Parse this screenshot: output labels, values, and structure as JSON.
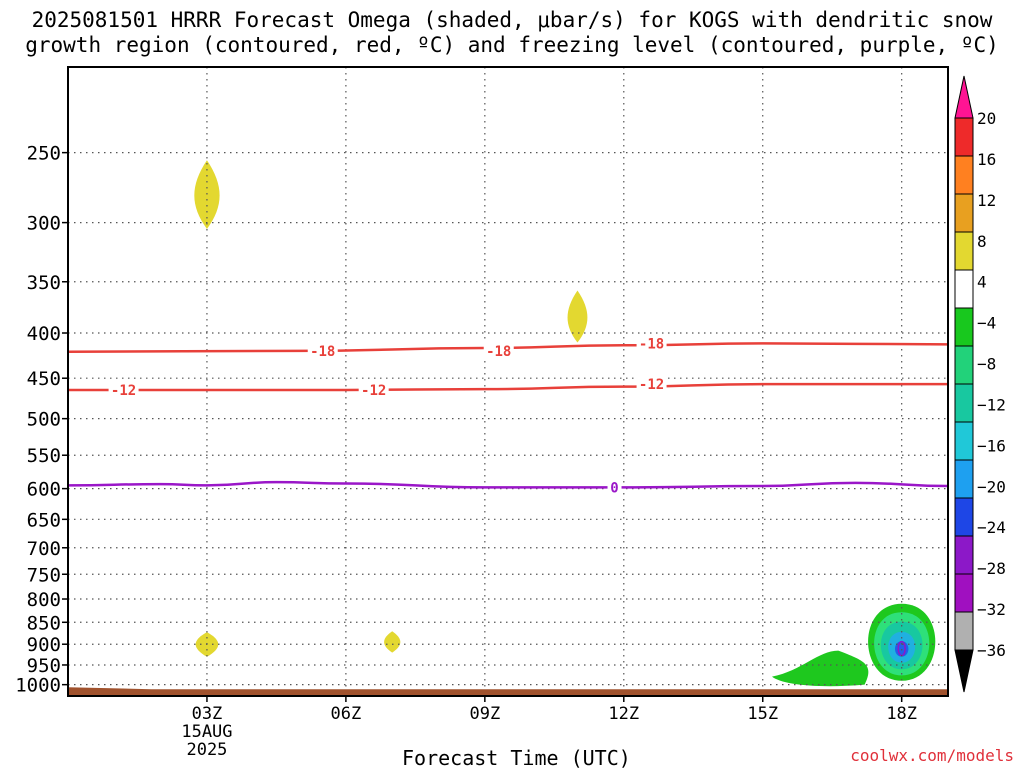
{
  "title": "2025081501 HRRR Forecast Omega (shaded, μbar/s) for KOGS with dendritic snow\ngrowth region (contoured, red, ºC) and freezing level (contoured, purple, ºC)",
  "credit": "coolwx.com/models",
  "colors": {
    "dgz_contour": "#e8403a",
    "freezing_contour": "#9a16c8",
    "terrain": "#a0522d",
    "grid": "#555555",
    "omega_yellow": "#e3d830",
    "omega_green_light": "#2ee07a",
    "omega_green": "#1ec81e",
    "omega_teal": "#18c8a0",
    "omega_cyan": "#20b0e0",
    "omega_blue": "#2060e8"
  },
  "chart_data": {
    "type": "heatmap",
    "xlabel": "Forecast Time (UTC)",
    "x_ticks": [
      "03Z",
      "06Z",
      "09Z",
      "12Z",
      "15Z",
      "18Z"
    ],
    "x_tick_hours": [
      3,
      6,
      9,
      12,
      15,
      18
    ],
    "x_date_label": [
      "15AUG",
      "2025"
    ],
    "xlim_hours": [
      0,
      19
    ],
    "y_ticks": [
      250,
      300,
      350,
      400,
      450,
      500,
      550,
      600,
      650,
      700,
      750,
      800,
      850,
      900,
      950,
      1000
    ],
    "ylim_hPa": [
      200,
      1030
    ],
    "y_scale": "log-pressure",
    "grid": true,
    "colorbar": {
      "labels": [
        "20",
        "16",
        "12",
        "8",
        "4",
        "−4",
        "−8",
        "−12",
        "−16",
        "−20",
        "−24",
        "−28",
        "−32",
        "−36"
      ],
      "colors": [
        "#ff1493",
        "#ee2a2a",
        "#ff8020",
        "#e8a020",
        "#e3d830",
        "#ffffff",
        "#18c81e",
        "#22d27a",
        "#18c8a0",
        "#20c8d8",
        "#1ea0f0",
        "#1e46e6",
        "#8c18c8",
        "#a010c0",
        "#b0b0b0",
        "#000000"
      ]
    },
    "contours": [
      {
        "label": "-18",
        "color": "red",
        "points": [
          [
            0,
            420
          ],
          [
            5,
            419
          ],
          [
            9,
            416
          ],
          [
            12,
            413
          ],
          [
            15,
            411
          ],
          [
            19,
            412
          ]
        ]
      },
      {
        "label": "-12",
        "color": "red",
        "points": [
          [
            0,
            464
          ],
          [
            6,
            464
          ],
          [
            9,
            463
          ],
          [
            12,
            460
          ],
          [
            15,
            457
          ],
          [
            19,
            457
          ]
        ]
      },
      {
        "label": "0",
        "color": "purple",
        "points": [
          [
            0,
            595
          ],
          [
            2,
            593
          ],
          [
            3,
            595
          ],
          [
            4.5,
            590
          ],
          [
            6,
            592
          ],
          [
            9,
            598
          ],
          [
            12,
            598
          ],
          [
            15,
            596
          ],
          [
            17,
            591
          ],
          [
            19,
            596
          ]
        ]
      }
    ],
    "contour_label_positions": [
      [
        5.5,
        419
      ],
      [
        1.2,
        464
      ],
      [
        6.6,
        464
      ],
      [
        9.3,
        419
      ],
      [
        12.6,
        411
      ],
      [
        12.6,
        457
      ],
      [
        11.8,
        598
      ]
    ],
    "omega_regions": [
      {
        "value_range": [
          4,
          8
        ],
        "center_hour": 3.0,
        "center_hPa": 280,
        "half_width_h": 0.28,
        "top_hPa": 255,
        "bottom_hPa": 305
      },
      {
        "value_range": [
          4,
          8
        ],
        "center_hour": 11.0,
        "center_hPa": 385,
        "half_width_h": 0.22,
        "top_hPa": 358,
        "bottom_hPa": 410
      },
      {
        "value_range": [
          4,
          8
        ],
        "center_hour": 3.0,
        "center_hPa": 900,
        "half_width_h": 0.25,
        "top_hPa": 872,
        "bottom_hPa": 930
      },
      {
        "value_range": [
          4,
          8
        ],
        "center_hour": 7.0,
        "center_hPa": 895,
        "half_width_h": 0.18,
        "top_hPa": 870,
        "bottom_hPa": 920
      },
      {
        "value_range": [
          -8,
          -4
        ],
        "center_hour": 16.2,
        "center_hPa": 960,
        "half_width_h": 1.0,
        "top_hPa": 915,
        "bottom_hPa": 1000
      },
      {
        "value_range": [
          -16,
          -4
        ],
        "center_hour": 18.0,
        "center_hPa": 915,
        "half_width_h": 0.9,
        "top_hPa": 810,
        "bottom_hPa": 990,
        "core_value": -24
      }
    ],
    "terrain_top_hPa": 1012
  }
}
